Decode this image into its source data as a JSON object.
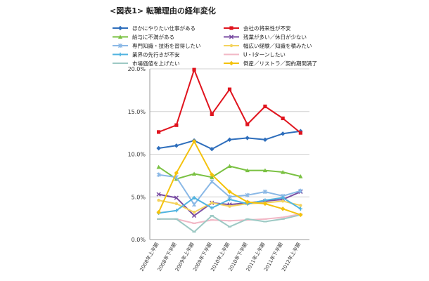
{
  "chart_data": {
    "type": "line",
    "title": "<図表1> 転職理由の経年変化",
    "xlabel": "",
    "ylabel": "",
    "ylim": [
      0,
      20
    ],
    "yticks": [
      "0.0%",
      "5.0%",
      "10.0%",
      "15.0%",
      "20.0%"
    ],
    "grid": true,
    "legend_position": "top",
    "categories": [
      "2008年上半期",
      "2008年下半期",
      "2009年上半期",
      "2009年下半期",
      "2010年上半期",
      "2010年下半期",
      "2011年上半期",
      "2011年下半期",
      "2012年上半期"
    ],
    "series": [
      {
        "name": "ほかにやりたい仕事がある",
        "color": "#2e6ebc",
        "marker": "diamond",
        "values": [
          10.7,
          11.0,
          11.6,
          10.6,
          11.7,
          11.9,
          11.7,
          12.4,
          12.7
        ]
      },
      {
        "name": "会社の将来性が不安",
        "color": "#e0141e",
        "marker": "square",
        "values": [
          12.6,
          13.4,
          19.9,
          14.7,
          17.6,
          13.5,
          15.6,
          14.2,
          12.5
        ]
      },
      {
        "name": "給与に不満がある",
        "color": "#7ac142",
        "marker": "triangle",
        "values": [
          8.5,
          7.1,
          7.7,
          7.3,
          8.6,
          8.1,
          8.1,
          7.9,
          7.4
        ]
      },
      {
        "name": "残業が多い／休日が少ない",
        "color": "#7b4ea3",
        "marker": "x",
        "values": [
          5.3,
          4.9,
          2.8,
          4.3,
          4.1,
          4.3,
          4.5,
          4.7,
          5.6
        ]
      },
      {
        "name": "専門知識・技術を習得したい",
        "color": "#8ab8e6",
        "marker": "star",
        "values": [
          7.6,
          7.3,
          4.1,
          6.8,
          5.0,
          5.2,
          5.6,
          5.1,
          5.7
        ]
      },
      {
        "name": "幅広い経験／知識を積みたい",
        "color": "#f4d35e",
        "marker": "dot",
        "values": [
          4.6,
          4.2,
          3.2,
          4.3,
          3.9,
          4.2,
          4.3,
          4.5,
          4.0
        ]
      },
      {
        "name": "業界の先行きが不安",
        "color": "#4fb3e0",
        "marker": "plus",
        "values": [
          3.1,
          3.4,
          4.9,
          3.7,
          4.7,
          4.2,
          4.6,
          4.9,
          3.6
        ]
      },
      {
        "name": "U・Iターンしたい",
        "color": "#f2b8c6",
        "marker": "dash",
        "values": [
          2.4,
          2.4,
          1.9,
          2.3,
          2.2,
          2.3,
          2.4,
          2.6,
          3.0
        ]
      },
      {
        "name": "市場価値を上げたい",
        "color": "#9dc9c4",
        "marker": "dash",
        "values": [
          2.4,
          2.4,
          0.9,
          2.8,
          1.5,
          2.4,
          2.1,
          2.4,
          2.9
        ]
      },
      {
        "name": "倒産／リストラ／契約期間満了",
        "color": "#f4c20d",
        "marker": "diamond",
        "values": [
          3.2,
          7.8,
          11.5,
          7.6,
          5.6,
          4.4,
          4.2,
          3.6,
          2.9
        ]
      }
    ]
  }
}
